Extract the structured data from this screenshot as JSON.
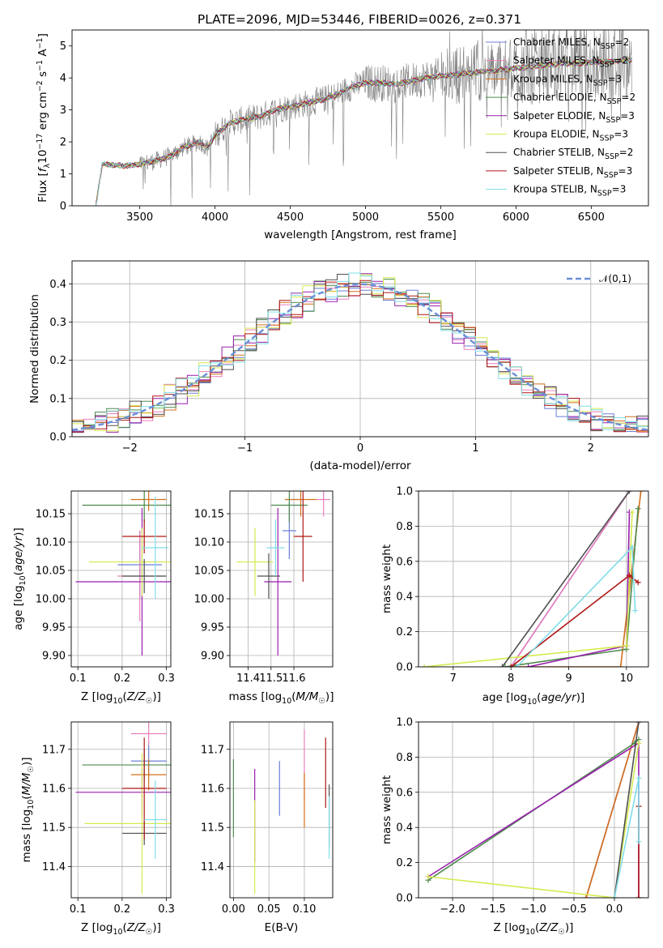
{
  "figure": {
    "title": "PLATE=2096, MJD=53446, FIBERID=0026, z=0.371"
  },
  "models": [
    {
      "name": "Chabrier MILES",
      "nssp": 2,
      "color": "#6b7fd6"
    },
    {
      "name": "Salpeter MILES",
      "nssp": 2,
      "color": "#e87fbd"
    },
    {
      "name": "Kroupa MILES",
      "nssp": 3,
      "color": "#d2701c"
    },
    {
      "name": "Chabrier ELODIE",
      "nssp": 2,
      "color": "#4d8a4d"
    },
    {
      "name": "Salpeter ELODIE",
      "nssp": 3,
      "color": "#9a1fae"
    },
    {
      "name": "Kroupa ELODIE",
      "nssp": 3,
      "color": "#d6ea4f"
    },
    {
      "name": "Chabrier STELIB",
      "nssp": 2,
      "color": "#505050"
    },
    {
      "name": "Salpeter STELIB",
      "nssp": 3,
      "color": "#b01717"
    },
    {
      "name": "Kroupa STELIB",
      "nssp": 3,
      "color": "#7fdde6"
    }
  ],
  "chart_data": [
    {
      "id": "spectrum",
      "type": "line",
      "xlabel": "wavelength [Angstrom, rest frame]",
      "ylabel": "Flux [f_λ10^-17 erg cm^-2 s^-1 A^-1]",
      "xlim": [
        3050,
        6880
      ],
      "ylim": [
        0,
        5.5
      ],
      "xticks": [
        3500,
        4000,
        4500,
        5000,
        5500,
        6000,
        6500
      ],
      "yticks": [
        0,
        1,
        2,
        3,
        4,
        5
      ],
      "data_color": "#808080",
      "continuum_nodes": {
        "x": [
          3210,
          3250,
          3400,
          3500,
          3600,
          3700,
          3800,
          3900,
          3950,
          4000,
          4100,
          4200,
          4300,
          4400,
          4500,
          4600,
          4700,
          4800,
          4900,
          5000,
          5100,
          5200,
          5300,
          5400,
          5500,
          5600,
          5700,
          5800,
          5900,
          6000,
          6100,
          6200,
          6300,
          6400,
          6500,
          6600,
          6700,
          6760
        ],
        "y": [
          0.05,
          1.3,
          1.25,
          1.3,
          1.4,
          1.55,
          1.85,
          2.0,
          1.8,
          2.2,
          2.6,
          2.7,
          2.8,
          3.0,
          3.1,
          3.2,
          3.3,
          3.45,
          3.7,
          3.85,
          3.85,
          3.8,
          3.9,
          4.0,
          4.05,
          4.1,
          4.15,
          4.2,
          4.25,
          4.3,
          4.35,
          4.4,
          4.45,
          4.45,
          4.5,
          4.5,
          4.55,
          4.55
        ]
      },
      "legend": "upper right"
    },
    {
      "id": "residuals",
      "type": "line",
      "xlabel": "(data-model)/error",
      "ylabel": "Normed distribution",
      "xlim": [
        -2.5,
        2.5
      ],
      "ylim": [
        0,
        0.46
      ],
      "xticks": [
        -2,
        -1,
        0,
        1,
        2
      ],
      "yticks": [
        0.0,
        0.1,
        0.2,
        0.3,
        0.4
      ],
      "grid": true,
      "bin_width": 0.1,
      "reference_curve": {
        "name": "𝒩(0,1)",
        "color": "#6a8fd6",
        "style": "dashed"
      },
      "legend": "upper right"
    },
    {
      "id": "age-vs-Z",
      "type": "scatter",
      "xlabel": "Z [log10(Z/Z☉)]",
      "ylabel": "age  [log10(age/yr)]",
      "xlim": [
        0.085,
        0.31
      ],
      "ylim": [
        9.88,
        10.19
      ],
      "xticks": [
        0.1,
        0.2,
        0.3
      ],
      "yticks": [
        9.9,
        9.95,
        10.0,
        10.05,
        10.1,
        10.15
      ],
      "grid": true,
      "points": [
        {
          "model": 0,
          "x": 0.24,
          "xerr": 0.05,
          "y": 10.06,
          "yerr": 0.06
        },
        {
          "model": 1,
          "x": 0.24,
          "xerr": 0.05,
          "y": 10.04,
          "yerr": 0.08
        },
        {
          "model": 2,
          "x": 0.26,
          "xerr": 0.04,
          "y": 10.175,
          "yerr": 0.02
        },
        {
          "model": 3,
          "x": 0.25,
          "xerr": 0.14,
          "y": 10.165,
          "yerr": 0.03
        },
        {
          "model": 4,
          "x": 0.245,
          "xerr": 0.15,
          "y": 10.03,
          "yerr": 0.13
        },
        {
          "model": 5,
          "x": 0.245,
          "xerr": 0.12,
          "y": 10.065,
          "yerr": 0.06
        },
        {
          "model": 6,
          "x": 0.25,
          "xerr": 0.05,
          "y": 10.04,
          "yerr": 0.03
        },
        {
          "model": 7,
          "x": 0.25,
          "xerr": 0.05,
          "y": 10.11,
          "yerr": 0.03
        },
        {
          "model": 8,
          "x": 0.275,
          "xerr": 0.03,
          "y": 10.09,
          "yerr": 0.09
        }
      ]
    },
    {
      "id": "age-vs-mass",
      "type": "scatter",
      "xlabel": "mass [log10(M/M☉)]",
      "ylabel": "",
      "xlim": [
        11.32,
        11.77
      ],
      "ylim": [
        9.88,
        10.19
      ],
      "xticks": [
        11.4,
        11.5,
        11.6
      ],
      "yticks": [
        9.9,
        9.95,
        10.0,
        10.05,
        10.1,
        10.15
      ],
      "grid": true,
      "points": [
        {
          "model": 0,
          "x": 11.58,
          "xerr": 0.03,
          "y": 10.12,
          "yerr": 0.05
        },
        {
          "model": 1,
          "x": 11.73,
          "xerr": 0.03,
          "y": 10.175,
          "yerr": 0.03
        },
        {
          "model": 2,
          "x": 11.63,
          "xerr": 0.07,
          "y": 10.175,
          "yerr": 0.03
        },
        {
          "model": 3,
          "x": 11.58,
          "xerr": 0.08,
          "y": 10.165,
          "yerr": 0.03
        },
        {
          "model": 4,
          "x": 11.53,
          "xerr": 0.06,
          "y": 10.03,
          "yerr": 0.13
        },
        {
          "model": 5,
          "x": 11.43,
          "xerr": 0.08,
          "y": 10.065,
          "yerr": 0.06
        },
        {
          "model": 6,
          "x": 11.49,
          "xerr": 0.05,
          "y": 10.04,
          "yerr": 0.04
        },
        {
          "model": 7,
          "x": 11.64,
          "xerr": 0.04,
          "y": 10.11,
          "yerr": 0.08
        },
        {
          "model": 8,
          "x": 11.52,
          "xerr": 0.04,
          "y": 10.09,
          "yerr": 0.05
        }
      ]
    },
    {
      "id": "weight-vs-age",
      "type": "line",
      "xlabel": "age  [log10(age/yr)]",
      "ylabel": "mass weight",
      "xlim": [
        6.4,
        10.38
      ],
      "ylim": [
        0,
        1.0
      ],
      "xticks": [
        7,
        8,
        9,
        10
      ],
      "yticks": [
        0.0,
        0.2,
        0.4,
        0.6,
        0.8,
        1.0
      ],
      "grid": true,
      "series": [
        {
          "model": 0,
          "x": [
            8.0,
            10.05
          ],
          "y": [
            0,
            1.0
          ]
        },
        {
          "model": 1,
          "x": [
            8.0,
            10.05
          ],
          "y": [
            0,
            1.0
          ]
        },
        {
          "model": 2,
          "x": [
            8.0,
            9.9,
            10.25
          ],
          "y": [
            0,
            0,
            1.0
          ]
        },
        {
          "model": 3,
          "x": [
            7.9,
            10.0,
            10.2
          ],
          "y": [
            0,
            0.1,
            0.9
          ]
        },
        {
          "model": 4,
          "x": [
            8.3,
            10.0,
            10.05
          ],
          "y": [
            0,
            0.12,
            0.88
          ]
        },
        {
          "model": 5,
          "x": [
            6.5,
            10.0,
            10.1
          ],
          "y": [
            0,
            0.12,
            0.88
          ]
        },
        {
          "model": 6,
          "x": [
            7.85,
            10.05
          ],
          "y": [
            0,
            1.0
          ]
        },
        {
          "model": 7,
          "x": [
            8.0,
            10.05,
            10.2
          ],
          "y": [
            0,
            0.52,
            0.48
          ]
        },
        {
          "model": 8,
          "x": [
            8.1,
            10.1,
            10.15
          ],
          "y": [
            0,
            0.68,
            0.32
          ]
        }
      ]
    },
    {
      "id": "mass-vs-Z",
      "type": "scatter",
      "xlabel": "Z [log10(Z/Z☉)]",
      "ylabel": "mass [log10(M/M☉)]",
      "xlim": [
        0.085,
        0.31
      ],
      "ylim": [
        11.32,
        11.77
      ],
      "xticks": [
        0.1,
        0.2,
        0.3
      ],
      "yticks": [
        11.4,
        11.5,
        11.6,
        11.7
      ],
      "grid": true,
      "points": [
        {
          "model": 0,
          "x": 0.26,
          "xerr": 0.04,
          "y": 11.67,
          "yerr": 0.04
        },
        {
          "model": 1,
          "x": 0.26,
          "xerr": 0.04,
          "y": 11.74,
          "yerr": 0.03
        },
        {
          "model": 2,
          "x": 0.26,
          "xerr": 0.04,
          "y": 11.635,
          "yerr": 0.04
        },
        {
          "model": 3,
          "x": 0.25,
          "xerr": 0.14,
          "y": 11.66,
          "yerr": 0.04
        },
        {
          "model": 4,
          "x": 0.245,
          "xerr": 0.15,
          "y": 11.59,
          "yerr": 0.06
        },
        {
          "model": 5,
          "x": 0.245,
          "xerr": 0.13,
          "y": 11.51,
          "yerr": 0.18
        },
        {
          "model": 6,
          "x": 0.25,
          "xerr": 0.05,
          "y": 11.485,
          "yerr": 0.03
        },
        {
          "model": 7,
          "x": 0.25,
          "xerr": 0.05,
          "y": 11.6,
          "yerr": 0.13
        },
        {
          "model": 8,
          "x": 0.275,
          "xerr": 0.025,
          "y": 11.52,
          "yerr": 0.1
        }
      ]
    },
    {
      "id": "mass-vs-EBV",
      "type": "scatter",
      "xlabel": "E(B-V)",
      "ylabel": "",
      "xlim": [
        -0.005,
        0.14
      ],
      "ylim": [
        11.32,
        11.77
      ],
      "xticks": [
        0.0,
        0.05,
        0.1
      ],
      "yticks": [
        11.4,
        11.5,
        11.6,
        11.7
      ],
      "grid": true,
      "points": [
        {
          "model": 0,
          "x": 0.065,
          "xerr": 0,
          "y": 11.6,
          "yerr": 0.07
        },
        {
          "model": 1,
          "x": 0.1,
          "xerr": 0,
          "y": 11.66,
          "yerr": 0.09
        },
        {
          "model": 2,
          "x": 0.1,
          "xerr": 0,
          "y": 11.57,
          "yerr": 0.07
        },
        {
          "model": 3,
          "x": 0.0,
          "xerr": 0,
          "y": 11.575,
          "yerr": 0.1
        },
        {
          "model": 4,
          "x": 0.03,
          "xerr": 0,
          "y": 11.53,
          "yerr": 0.12
        },
        {
          "model": 5,
          "x": 0.03,
          "xerr": 0,
          "y": 11.45,
          "yerr": 0.12
        },
        {
          "model": 6,
          "x": 0.135,
          "xerr": 0,
          "y": 11.53,
          "yerr": 0.08
        },
        {
          "model": 7,
          "x": 0.13,
          "xerr": 0,
          "y": 11.64,
          "yerr": 0.09
        },
        {
          "model": 8,
          "x": 0.135,
          "xerr": 0,
          "y": 11.5,
          "yerr": 0.08
        }
      ]
    },
    {
      "id": "weight-vs-Z",
      "type": "line",
      "xlabel": "Z [log10(Z/Z☉)]",
      "ylabel": "mass weight",
      "xlim": [
        -2.42,
        0.42
      ],
      "ylim": [
        0,
        1.0
      ],
      "xticks": [
        -2.0,
        -1.5,
        -1.0,
        -0.5,
        0.0
      ],
      "yticks": [
        0.0,
        0.2,
        0.4,
        0.6,
        0.8,
        1.0
      ],
      "grid": true,
      "series": [
        {
          "model": 0,
          "x": [
            -0.35,
            0.3
          ],
          "y": [
            0,
            1.0
          ]
        },
        {
          "model": 1,
          "x": [
            -0.35,
            0.3
          ],
          "y": [
            0,
            1.0
          ]
        },
        {
          "model": 2,
          "x": [
            -0.35,
            0.3
          ],
          "y": [
            0,
            1.0
          ]
        },
        {
          "model": 3,
          "x": [
            -2.3,
            0.25,
            0.3
          ],
          "y": [
            0.1,
            0.88,
            0.9
          ]
        },
        {
          "model": 4,
          "x": [
            -2.3,
            0.3,
            0.3
          ],
          "y": [
            0.12,
            0.88,
            0
          ]
        },
        {
          "model": 5,
          "x": [
            -2.3,
            0.0,
            0.3
          ],
          "y": [
            0.12,
            0,
            0.88
          ]
        },
        {
          "model": 6,
          "x": [
            0.0,
            0.3
          ],
          "y": [
            0,
            1.0
          ]
        },
        {
          "model": 7,
          "x": [
            0.3,
            0.3
          ],
          "y": [
            0,
            0.52
          ]
        },
        {
          "model": 8,
          "x": [
            0.0,
            0.3,
            0.3
          ],
          "y": [
            0,
            0.68,
            0.32
          ]
        }
      ]
    }
  ]
}
